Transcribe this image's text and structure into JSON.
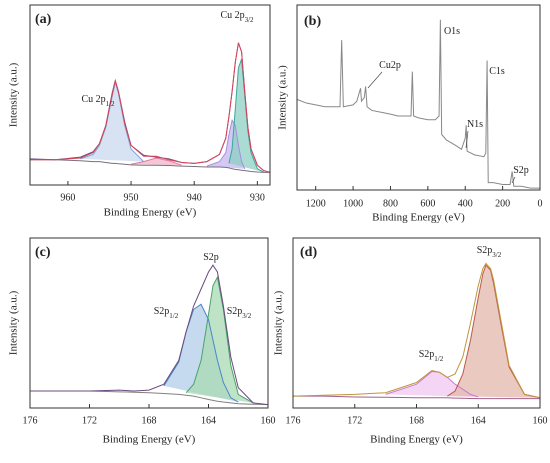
{
  "chart_data": [
    {
      "type": "line",
      "label": "(a)",
      "xlabel": "Binding Energy (eV)",
      "ylabel": "Intensity (a.u.)",
      "xlim": [
        966,
        928
      ],
      "ylim": [
        0,
        100
      ],
      "xticks": [
        960,
        950,
        940,
        930
      ],
      "x": [
        966,
        962,
        958,
        956,
        955,
        954,
        953,
        952.5,
        952,
        951,
        950,
        948,
        946,
        944,
        942,
        940,
        938,
        936,
        935,
        934.5,
        934,
        933.5,
        933,
        932.5,
        932,
        931.5,
        931,
        930,
        929,
        928
      ],
      "series": [
        {
          "color": "#7fa7d6",
          "fill": "#c9d9ee",
          "values": [
            null,
            null,
            14.5,
            17,
            22,
            32,
            49,
            57,
            51,
            33,
            20,
            13,
            null,
            null,
            null,
            null,
            null,
            null,
            null,
            null,
            null,
            null,
            null,
            null,
            null,
            null,
            null,
            null,
            null,
            null
          ]
        },
        {
          "color": "#e07aa0",
          "fill": "#f1b3c8",
          "values": [
            null,
            null,
            null,
            null,
            null,
            null,
            null,
            null,
            null,
            null,
            11.5,
            13,
            15,
            13.5,
            11,
            null,
            null,
            null,
            null,
            null,
            null,
            null,
            null,
            null,
            null,
            null,
            null,
            null,
            null,
            null
          ]
        },
        {
          "color": "#a58ee0",
          "fill": "#c6b5f0",
          "values": [
            null,
            null,
            null,
            null,
            null,
            null,
            null,
            null,
            null,
            null,
            null,
            null,
            null,
            null,
            null,
            null,
            10.5,
            13,
            18,
            28,
            36,
            33,
            22,
            13,
            9,
            null,
            null,
            null,
            null,
            null
          ]
        },
        {
          "color": "#3aa89a",
          "fill": "#8fd0c4",
          "values": [
            null,
            null,
            null,
            null,
            null,
            null,
            null,
            null,
            null,
            null,
            null,
            null,
            null,
            null,
            null,
            null,
            null,
            null,
            null,
            12,
            20,
            42,
            65,
            70,
            50,
            30,
            18,
            9,
            7.2,
            null
          ]
        },
        {
          "color": "#7a6f80",
          "values": [
            14,
            14,
            13.5,
            13,
            13,
            12.5,
            12,
            12,
            11.8,
            11.5,
            11.2,
            11,
            11,
            10.8,
            10.5,
            10.3,
            10,
            10,
            9.8,
            9.5,
            9,
            8.7,
            8.5,
            8.2,
            8,
            7.8,
            7.5,
            7.2,
            7,
            7
          ]
        },
        {
          "color": "#6a4b80",
          "values": [
            14.5,
            14,
            15.5,
            18.5,
            23,
            33,
            51,
            58,
            52,
            35,
            22,
            16.5,
            15.5,
            14.5,
            12.5,
            12,
            13,
            17,
            26,
            38,
            52,
            68,
            79,
            74,
            52,
            32,
            20,
            11,
            8,
            7
          ]
        },
        {
          "color": "#d9455a",
          "values": [
            14,
            14,
            15,
            18,
            23,
            33,
            50,
            58,
            52,
            34,
            22,
            16,
            16,
            14,
            12.5,
            12,
            13,
            17,
            26,
            38,
            52,
            68,
            79,
            74,
            52,
            32,
            20,
            11,
            8,
            7
          ]
        }
      ],
      "annotations": [
        {
          "text": "Cu 2p",
          "sub": "1/2"
        },
        {
          "text": "Cu 2p",
          "sub": "3/2"
        }
      ]
    },
    {
      "type": "line",
      "label": "(b)",
      "xlabel": "Binding Energy (eV)",
      "ylabel": "Intensity (a.u.)",
      "xlim": [
        1300,
        0
      ],
      "ylim": [
        0,
        100
      ],
      "xticks": [
        1200,
        1000,
        800,
        600,
        400,
        200,
        0
      ],
      "x": [
        1300,
        1250,
        1200,
        1150,
        1100,
        1070,
        1061,
        1052,
        1000,
        980,
        960,
        955,
        940,
        933,
        925,
        900,
        850,
        800,
        760,
        700,
        690,
        683,
        676,
        650,
        600,
        560,
        540,
        533,
        526,
        500,
        450,
        420,
        400,
        395,
        390,
        350,
        300,
        290,
        283,
        277,
        250,
        200,
        160,
        149,
        140,
        100,
        50,
        0
      ],
      "series": [
        {
          "color": "#888888",
          "values": [
            49,
            47,
            46,
            45,
            45,
            45,
            81,
            45,
            46,
            48,
            55,
            48,
            50,
            56,
            45,
            43,
            42,
            41,
            40,
            40,
            40,
            64,
            40,
            39,
            38,
            38,
            40,
            92,
            30,
            27,
            24,
            22,
            28,
            35,
            21,
            19,
            18,
            20,
            70,
            4,
            4,
            3,
            3,
            10,
            2,
            2,
            1,
            1
          ]
        }
      ],
      "annotations": [
        {
          "text": "O1s"
        },
        {
          "text": "Cu2p"
        },
        {
          "text": "C1s"
        },
        {
          "text": "N1s"
        },
        {
          "text": "S2p"
        }
      ]
    },
    {
      "type": "line",
      "label": "(c)",
      "xlabel": "Binding Energy (eV)",
      "ylabel": "Intensity (a.u.)",
      "xlim": [
        176,
        160
      ],
      "ylim": [
        0,
        100
      ],
      "xticks": [
        176,
        172,
        168,
        164,
        160
      ],
      "x": [
        176,
        174,
        172,
        170,
        169,
        168,
        167,
        166,
        165.5,
        165,
        164.5,
        164,
        163.7,
        163.4,
        163,
        162.5,
        162,
        161,
        160
      ],
      "series": [
        {
          "color": "#4a86c5",
          "fill": "#b3cdea",
          "values": [
            null,
            null,
            null,
            null,
            null,
            null,
            13,
            27,
            45,
            58,
            61,
            52,
            40,
            28,
            15,
            6,
            3.5,
            null,
            null
          ]
        },
        {
          "color": "#4aa36a",
          "fill": "#a9d9b4",
          "values": [
            null,
            null,
            null,
            null,
            null,
            null,
            null,
            null,
            9,
            14,
            28,
            55,
            72,
            77,
            58,
            25,
            8,
            3,
            null
          ]
        },
        {
          "color": "#808080",
          "values": [
            10,
            10,
            10,
            9.5,
            9.3,
            9,
            8.5,
            8,
            7.5,
            7,
            6,
            5,
            4.5,
            4,
            3.5,
            3,
            2.5,
            2.2,
            2
          ]
        },
        {
          "color": "#6b4b7d",
          "values": [
            10,
            10,
            10,
            10.5,
            10,
            10.5,
            14,
            28,
            45,
            60,
            70,
            80,
            84,
            80,
            60,
            30,
            12,
            3,
            2
          ]
        }
      ],
      "annotations": [
        {
          "text": "S2p"
        },
        {
          "text": "S2p",
          "sub": "1/2"
        },
        {
          "text": "S2p",
          "sub": "3/2"
        }
      ]
    },
    {
      "type": "line",
      "label": "(d)",
      "xlabel": "Binding Energy (eV)",
      "ylabel": "Intensity (a.u.)",
      "xlim": [
        176,
        160
      ],
      "ylim": [
        0,
        100
      ],
      "xticks": [
        176,
        172,
        168,
        164,
        160
      ],
      "x": [
        176,
        174,
        172,
        170,
        168,
        167,
        166.5,
        166,
        165.5,
        165,
        164.5,
        164,
        163.7,
        163.5,
        163.2,
        163,
        162.5,
        162,
        161,
        160
      ],
      "series": [
        {
          "color": "#c97bd1",
          "fill": "#f0c8f0",
          "values": [
            null,
            null,
            null,
            8,
            14,
            21.5,
            21,
            18,
            14,
            11,
            8,
            6.5,
            null,
            null,
            null,
            null,
            null,
            null,
            null,
            null
          ]
        },
        {
          "color": "#b85a4a",
          "fill": "#e3b7ac",
          "values": [
            null,
            null,
            null,
            null,
            null,
            null,
            null,
            7,
            10,
            20,
            40,
            65,
            79,
            84,
            81,
            73,
            48,
            24,
            8,
            6
          ]
        },
        {
          "color": "#a0608a",
          "values": [
            7,
            7,
            6.5,
            6.3,
            6,
            6,
            6,
            6,
            5.8,
            5.7,
            5.6,
            5.5,
            5.5,
            5.5,
            5.5,
            5.5,
            5.5,
            5.5,
            5.5,
            5.5
          ]
        },
        {
          "color": "#c0953a",
          "values": [
            7,
            7.5,
            8,
            9,
            15,
            22,
            21,
            18,
            20,
            30,
            50,
            72,
            82,
            85,
            82,
            75,
            50,
            25,
            8,
            6
          ]
        }
      ],
      "annotations": [
        {
          "text": "S2p",
          "sub": "3/2"
        },
        {
          "text": "S2p",
          "sub": "1/2"
        }
      ]
    }
  ]
}
